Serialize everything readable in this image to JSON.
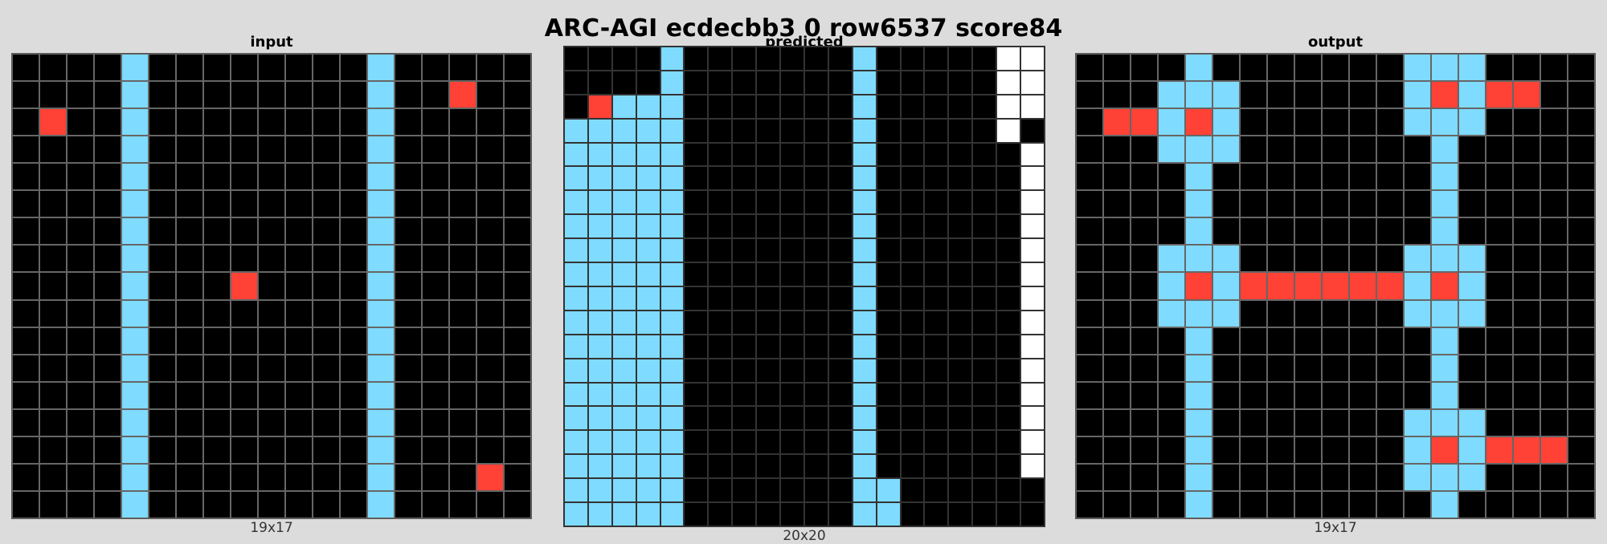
{
  "title": "ARC-AGI ecdecbb3 0 row6537 score84",
  "palette": {
    "0": "#000000",
    "2": "#ff4136",
    "8": "#7fdbff",
    "W": "#ffffff"
  },
  "panels": {
    "input": {
      "label": "input",
      "size_label": "19x17",
      "rows": [
        "0000800000000800000",
        "0000800000000800200",
        "0200800000000800000",
        "0000800000000800000",
        "0000800000000800000",
        "0000800000000800000",
        "0000800000000800000",
        "0000800000000800000",
        "0000800020000800000",
        "0000800000000800000",
        "0000800000000800000",
        "0000800000000800000",
        "0000800000000800000",
        "0000800000000800000",
        "0000800000000800000",
        "0000800000000800020",
        "0000800000000800000"
      ]
    },
    "predicted": {
      "label": "predicted",
      "size_label": "20x20",
      "rows": [
        "000080000000800000WW",
        "000080000000800000WW",
        "028880000000800000WW",
        "888880000000800000W0",
        "8888800000008000000W",
        "8888800000008000000W",
        "8888800000008000000W",
        "8888800000008000000W",
        "8888800000008000000W",
        "8888800000008000000W",
        "8888800000008000000W",
        "8888800000008000000W",
        "8888800000008000000W",
        "8888800000008000000W",
        "8888800000008000000W",
        "8888800000008000000W",
        "8888800000008000000W",
        "8888800000008000000W",
        "88888000000088000000",
        "88888000000088000000"
      ]
    },
    "output": {
      "label": "output",
      "size_label": "19x17",
      "rows": [
        "0000800000008880000",
        "0008880000008282200",
        "0228280000008880000",
        "0008880000000800000",
        "0000800000000800000",
        "0000800000000800000",
        "0000800000000800000",
        "0008880000008880000",
        "0008282222228280000",
        "0008880000008880000",
        "0000800000000800000",
        "0000800000000800000",
        "0000800000000800000",
        "0000800000008880000",
        "0000800000008282220",
        "0000800000008880000",
        "0000800000000800000"
      ]
    }
  }
}
